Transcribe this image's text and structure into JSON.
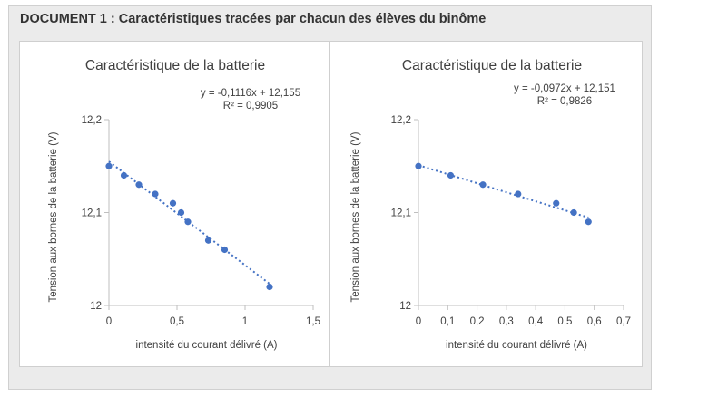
{
  "document": {
    "title": "DOCUMENT 1 : Caractéristiques tracées par chacun des élèves du binôme"
  },
  "colors": {
    "points": "#4472c4",
    "trendline": "#4472c4",
    "axis": "#bfbfbf"
  },
  "chart_data": [
    {
      "type": "scatter",
      "title": "Caractéristique de la batterie",
      "xlabel": "intensité du courant délivré (A)",
      "ylabel": "Tension aux bornes de la batterie (V)",
      "xlim": [
        0,
        1.5
      ],
      "ylim": [
        12,
        12.2
      ],
      "xticks": [
        0,
        0.5,
        1,
        1.5
      ],
      "xtick_labels": [
        "0",
        "0,5",
        "1",
        "1,5"
      ],
      "yticks": [
        12,
        12.1,
        12.2
      ],
      "ytick_labels": [
        "12",
        "12,1",
        "12,2"
      ],
      "x": [
        0,
        0.11,
        0.22,
        0.34,
        0.47,
        0.53,
        0.58,
        0.73,
        0.85,
        1.18
      ],
      "y": [
        12.15,
        12.14,
        12.13,
        12.12,
        12.11,
        12.1,
        12.09,
        12.07,
        12.06,
        12.02
      ],
      "trendline": {
        "slope": -0.1116,
        "intercept": 12.155,
        "x_range": [
          0,
          1.18
        ]
      },
      "equation": "y = -0,1116x + 12,155",
      "r2": "R² = 0,9905"
    },
    {
      "type": "scatter",
      "title": "Caractéristique de la batterie",
      "xlabel": "intensité du courant délivré (A)",
      "ylabel": "Tension aux bornes de la batterie (V)",
      "xlim": [
        0,
        0.7
      ],
      "ylim": [
        12,
        12.2
      ],
      "xticks": [
        0,
        0.1,
        0.2,
        0.3,
        0.4,
        0.5,
        0.6,
        0.7
      ],
      "xtick_labels": [
        "0",
        "0,1",
        "0,2",
        "0,3",
        "0,4",
        "0,5",
        "0,6",
        "0,7"
      ],
      "yticks": [
        12,
        12.1,
        12.2
      ],
      "ytick_labels": [
        "12",
        "12,1",
        "12,2"
      ],
      "x": [
        0,
        0.11,
        0.22,
        0.34,
        0.47,
        0.53,
        0.58
      ],
      "y": [
        12.15,
        12.14,
        12.13,
        12.12,
        12.11,
        12.1,
        12.09
      ],
      "trendline": {
        "slope": -0.0972,
        "intercept": 12.151,
        "x_range": [
          0,
          0.58
        ]
      },
      "equation": "y = -0,0972x + 12,151",
      "r2": "R² = 0,9826"
    }
  ]
}
